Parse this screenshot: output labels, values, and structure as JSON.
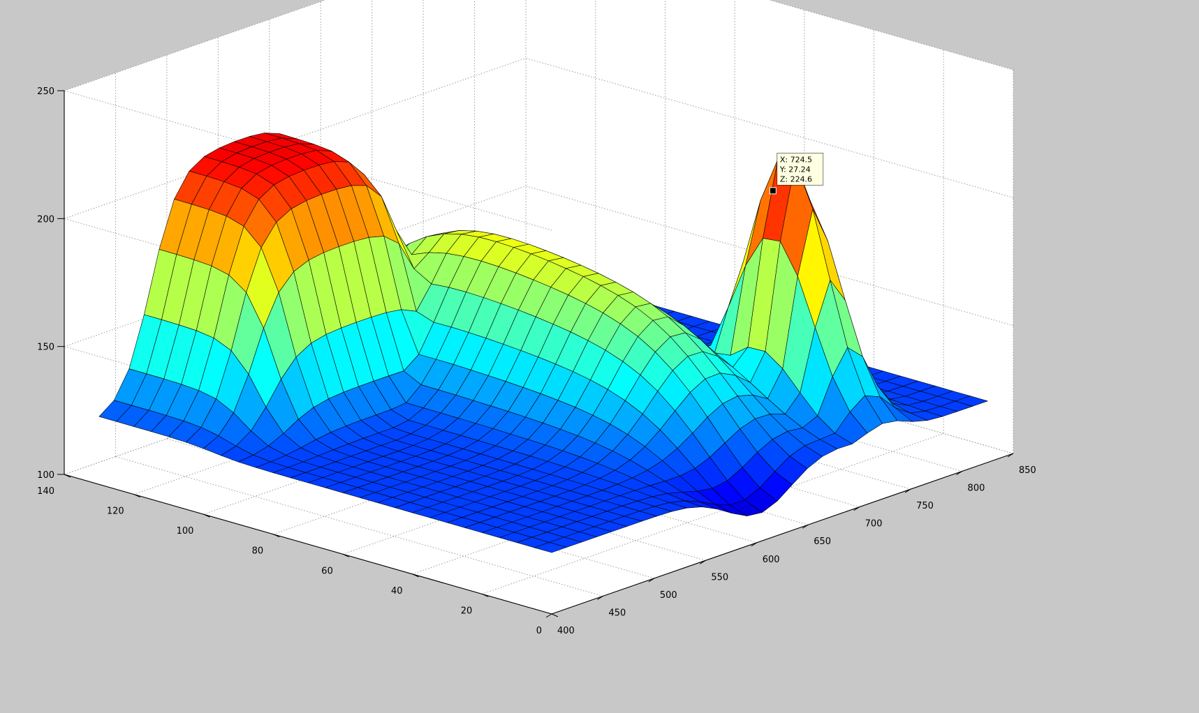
{
  "window": {
    "background": "#c8c8c8"
  },
  "chart_data": {
    "type": "surface",
    "title": "",
    "xlabel": "",
    "ylabel": "",
    "zlabel": "",
    "colormap": "jet",
    "grid": true,
    "xlim": [
      400,
      850
    ],
    "ylim": [
      0,
      140
    ],
    "zlim": [
      100,
      250
    ],
    "x_ticks": [
      400,
      450,
      500,
      550,
      600,
      650,
      700,
      750,
      800,
      850
    ],
    "y_ticks": [
      0,
      20,
      40,
      60,
      80,
      100,
      120,
      140
    ],
    "z_ticks": [
      100,
      150,
      200,
      250
    ],
    "x_tick_labels": [
      "400",
      "450",
      "500",
      "550",
      "600",
      "650",
      "700",
      "750",
      "800",
      "850"
    ],
    "y_tick_labels": [
      "0",
      "20",
      "40",
      "60",
      "80",
      "100",
      "120",
      "140"
    ],
    "z_tick_labels": [
      "100",
      "150",
      "200",
      "250"
    ],
    "surface": {
      "x_range": [
        400,
        825
      ],
      "y_range": [
        0,
        130
      ],
      "x_count": 30,
      "y_count": 27,
      "base_z": 124,
      "features": [
        {
          "name": "back-plateau",
          "x_from": 450,
          "x_to": 615,
          "y_from": 115,
          "y_to": 130,
          "height": 216
        },
        {
          "name": "rising-ridge",
          "x_center": 640,
          "y_center": 60,
          "height": 190
        },
        {
          "name": "peak",
          "x": 724.5,
          "y": 27.24,
          "z": 224.6
        },
        {
          "name": "dip",
          "x": 605,
          "y": 0,
          "z": 108
        }
      ]
    },
    "datatip": {
      "x": 724.5,
      "y": 27.24,
      "z": 224.6,
      "label_x": "X: 724.5",
      "label_y": "Y: 27.24",
      "label_z": "Z: 224.6"
    }
  }
}
